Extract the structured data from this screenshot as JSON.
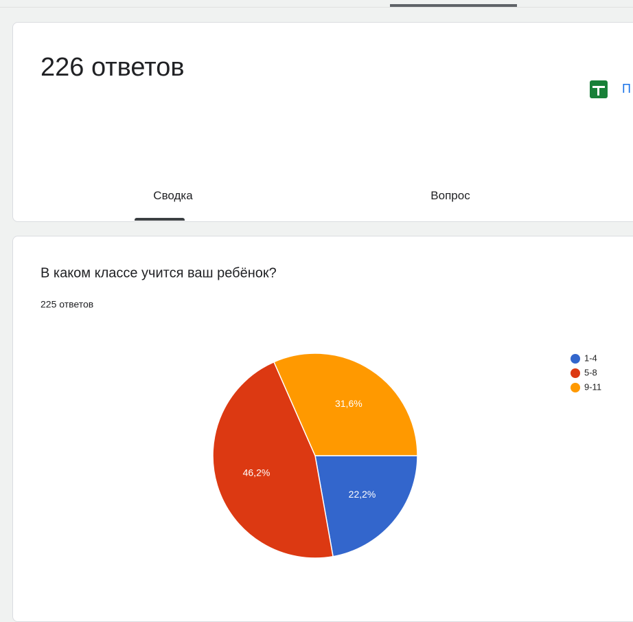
{
  "header": {
    "title": "226 ответов",
    "link": "П"
  },
  "tabs": [
    "Сводка",
    "Вопрос"
  ],
  "chart_data": {
    "type": "pie",
    "title": "В каком классе учится ваш ребёнок?",
    "subtitle": "225 ответов",
    "categories": [
      "1-4",
      "5-8",
      "9-11"
    ],
    "values": [
      22.2,
      46.2,
      31.6
    ],
    "value_labels": [
      "22,2%",
      "46,2%",
      "31,6%"
    ],
    "colors": [
      "#3366cc",
      "#dc3912",
      "#ff9900"
    ],
    "legend": "right"
  }
}
